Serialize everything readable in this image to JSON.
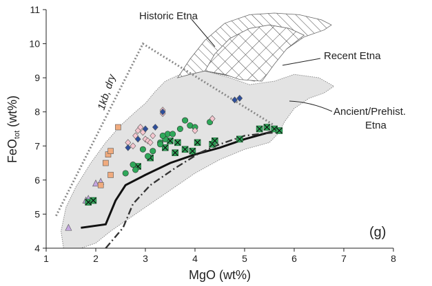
{
  "chart_data": {
    "type": "scatter",
    "xlabel": "MgO (wt%)",
    "ylabel_main": "FeO",
    "ylabel_sub": "tot",
    "ylabel_unit": " (wt%)",
    "xlim": [
      1,
      8
    ],
    "ylim": [
      4,
      11
    ],
    "x_ticks": [
      "1",
      "2",
      "3",
      "4",
      "5",
      "6",
      "7",
      "8"
    ],
    "y_ticks": [
      "4",
      "5",
      "6",
      "7",
      "8",
      "9",
      "10",
      "11"
    ],
    "panel_label": "(g)",
    "annotations": {
      "historic": "Historic Etna",
      "recent": "Recent Etna",
      "ancient_line1": "Ancient/Prehist.",
      "ancient_line2": "Etna",
      "dry": "1kb, dry"
    },
    "fields": {
      "ancient": [
        [
          1.35,
          4.0
        ],
        [
          1.3,
          4.5
        ],
        [
          1.4,
          5.2
        ],
        [
          1.6,
          5.8
        ],
        [
          1.9,
          6.5
        ],
        [
          2.2,
          7.1
        ],
        [
          2.5,
          7.6
        ],
        [
          2.8,
          8.0
        ],
        [
          3.0,
          8.25
        ],
        [
          3.2,
          8.6
        ],
        [
          3.4,
          8.9
        ],
        [
          3.7,
          9.1
        ],
        [
          4.2,
          9.2
        ],
        [
          4.7,
          9.0
        ],
        [
          5.1,
          8.8
        ],
        [
          5.6,
          8.9
        ],
        [
          6.0,
          9.1
        ],
        [
          6.5,
          9.0
        ],
        [
          6.8,
          8.75
        ],
        [
          6.6,
          8.55
        ],
        [
          6.3,
          8.4
        ],
        [
          6.0,
          8.1
        ],
        [
          5.8,
          7.7
        ],
        [
          5.7,
          7.4
        ],
        [
          5.5,
          7.1
        ],
        [
          5.0,
          6.9
        ],
        [
          4.5,
          6.6
        ],
        [
          4.0,
          6.2
        ],
        [
          3.5,
          5.7
        ],
        [
          3.0,
          5.2
        ],
        [
          2.6,
          4.8
        ],
        [
          2.3,
          4.5
        ],
        [
          2.0,
          4.15
        ],
        [
          1.7,
          4.0
        ]
      ],
      "historic": [
        [
          3.65,
          9.0
        ],
        [
          3.9,
          9.55
        ],
        [
          4.2,
          10.1
        ],
        [
          4.6,
          10.6
        ],
        [
          5.1,
          10.85
        ],
        [
          5.6,
          10.9
        ],
        [
          6.1,
          10.85
        ],
        [
          6.55,
          10.7
        ],
        [
          6.75,
          10.55
        ],
        [
          6.6,
          10.4
        ],
        [
          6.2,
          10.2
        ],
        [
          5.8,
          9.8
        ],
        [
          5.5,
          9.3
        ],
        [
          5.2,
          8.9
        ],
        [
          4.7,
          9.05
        ],
        [
          4.2,
          9.2
        ],
        [
          3.9,
          9.1
        ]
      ],
      "recent": [
        [
          4.2,
          9.2
        ],
        [
          4.4,
          9.7
        ],
        [
          4.7,
          10.15
        ],
        [
          5.1,
          10.45
        ],
        [
          5.5,
          10.55
        ],
        [
          5.9,
          10.45
        ],
        [
          6.2,
          10.25
        ],
        [
          5.85,
          9.85
        ],
        [
          5.6,
          9.4
        ],
        [
          5.35,
          8.9
        ],
        [
          4.9,
          8.95
        ],
        [
          4.6,
          9.1
        ]
      ]
    },
    "lines": {
      "dry_1kb": [
        [
          1.2,
          4.95
        ],
        [
          2.95,
          10.0
        ],
        [
          5.6,
          7.6
        ]
      ],
      "solid": [
        [
          1.7,
          4.6
        ],
        [
          2.2,
          4.7
        ],
        [
          2.4,
          5.4
        ],
        [
          2.6,
          5.85
        ],
        [
          3.0,
          6.15
        ],
        [
          3.5,
          6.5
        ],
        [
          4.0,
          6.75
        ],
        [
          4.5,
          6.95
        ],
        [
          5.0,
          7.2
        ],
        [
          5.5,
          7.4
        ],
        [
          5.7,
          7.5
        ]
      ],
      "dashdot": [
        [
          2.2,
          4.0
        ],
        [
          2.55,
          4.6
        ],
        [
          2.75,
          5.3
        ],
        [
          3.1,
          5.85
        ],
        [
          3.6,
          6.35
        ],
        [
          4.1,
          6.8
        ],
        [
          4.5,
          7.05
        ],
        [
          5.0,
          7.3
        ],
        [
          5.5,
          7.38
        ],
        [
          5.7,
          7.4
        ]
      ]
    },
    "series": [
      {
        "marker": "triangle",
        "color": "#c4a6e0",
        "points": [
          [
            1.45,
            4.6
          ],
          [
            1.8,
            5.4
          ],
          [
            2.0,
            5.9
          ],
          [
            2.1,
            5.95
          ],
          [
            1.85,
            5.45
          ]
        ]
      },
      {
        "marker": "square",
        "color": "#f0ab7e",
        "points": [
          [
            2.25,
            6.75
          ],
          [
            2.3,
            6.85
          ],
          [
            2.2,
            6.5
          ],
          [
            2.3,
            6.15
          ],
          [
            2.1,
            5.85
          ],
          [
            2.45,
            7.55
          ]
        ]
      },
      {
        "marker": "square_x",
        "color": "#2fa85a",
        "points": [
          [
            1.85,
            5.35
          ],
          [
            1.95,
            5.4
          ],
          [
            2.85,
            6.4
          ],
          [
            3.1,
            6.65
          ],
          [
            3.4,
            6.95
          ],
          [
            3.6,
            6.8
          ],
          [
            3.8,
            6.9
          ],
          [
            3.95,
            6.85
          ],
          [
            4.05,
            7.1
          ],
          [
            4.35,
            7.05
          ],
          [
            4.4,
            7.15
          ],
          [
            4.9,
            7.2
          ],
          [
            5.3,
            7.5
          ],
          [
            5.45,
            7.55
          ],
          [
            5.6,
            7.5
          ],
          [
            5.7,
            7.45
          ],
          [
            3.5,
            7.15
          ],
          [
            3.65,
            7.1
          ]
        ]
      },
      {
        "marker": "circle",
        "color": "#2fa85a",
        "points": [
          [
            2.6,
            6.2
          ],
          [
            2.75,
            6.45
          ],
          [
            2.8,
            6.3
          ],
          [
            3.05,
            6.7
          ],
          [
            3.15,
            6.85
          ],
          [
            3.3,
            7.1
          ],
          [
            3.4,
            7.2
          ],
          [
            3.45,
            7.35
          ],
          [
            3.35,
            7.3
          ],
          [
            3.55,
            7.35
          ],
          [
            3.3,
            7.05
          ],
          [
            3.7,
            7.5
          ],
          [
            3.8,
            7.75
          ],
          [
            3.9,
            7.6
          ],
          [
            4.0,
            7.55
          ],
          [
            4.3,
            7.7
          ],
          [
            2.95,
            6.9
          ]
        ]
      },
      {
        "marker": "diamond",
        "color": "#f5c6cf",
        "points": [
          [
            2.65,
            7.1
          ],
          [
            2.75,
            7.0
          ],
          [
            2.8,
            7.3
          ],
          [
            2.85,
            7.45
          ],
          [
            2.9,
            7.55
          ],
          [
            2.95,
            7.4
          ],
          [
            3.0,
            7.2
          ],
          [
            3.05,
            7.15
          ],
          [
            3.1,
            7.1
          ],
          [
            3.15,
            7.3
          ],
          [
            3.35,
            8.05
          ],
          [
            3.35,
            7.95
          ],
          [
            4.0,
            7.45
          ],
          [
            4.35,
            7.8
          ]
        ]
      },
      {
        "marker": "diamond",
        "color": "#2e4f9c",
        "points": [
          [
            2.65,
            6.95
          ],
          [
            2.85,
            7.2
          ],
          [
            3.0,
            7.5
          ],
          [
            3.2,
            7.55
          ],
          [
            3.35,
            8.0
          ],
          [
            4.8,
            8.35
          ],
          [
            4.9,
            8.4
          ]
        ]
      }
    ]
  }
}
